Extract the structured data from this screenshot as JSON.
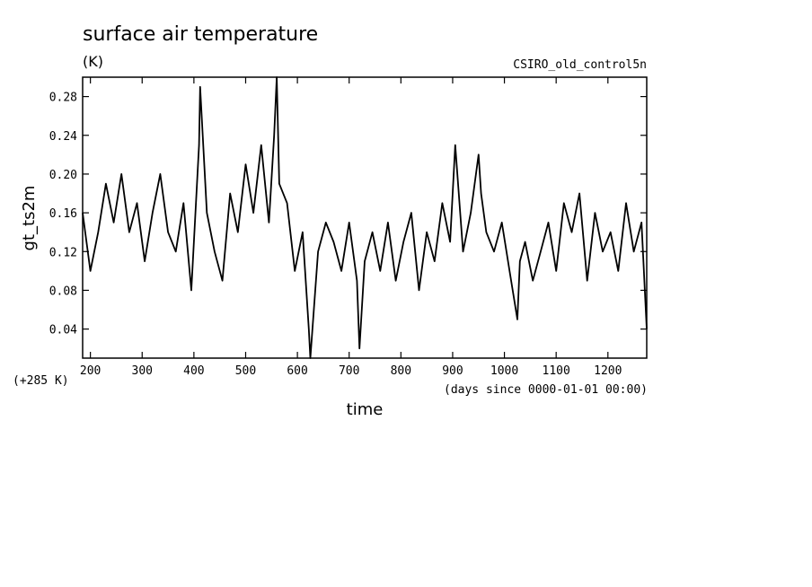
{
  "chart_data": {
    "type": "line",
    "title": "surface air temperature",
    "units": "(K)",
    "experiment": "CSIRO_old_control5n",
    "ylabel": "gt_ts2m",
    "xlabel": "time",
    "y_offset_label": "(+285 K)",
    "x_units_label": "(days since 0000-01-01 00:00)",
    "xlim": [
      185,
      1275
    ],
    "ylim": [
      0.01,
      0.3
    ],
    "x_ticks": [
      200,
      300,
      400,
      500,
      600,
      700,
      800,
      900,
      1000,
      1100,
      1200
    ],
    "x_tick_labels": [
      "200",
      "300",
      "400",
      "500",
      "600",
      "700",
      "800",
      "900",
      "1000",
      "1100",
      "1200"
    ],
    "y_ticks": [
      0.04,
      0.08,
      0.12,
      0.16,
      0.2,
      0.24,
      0.28
    ],
    "y_tick_labels": [
      "0.04",
      "0.08",
      "0.12",
      "0.16",
      "0.20",
      "0.24",
      "0.28"
    ],
    "series": [
      {
        "name": "gt_ts2m",
        "x": [
          185,
          200,
          215,
          230,
          245,
          260,
          275,
          290,
          305,
          320,
          335,
          350,
          365,
          380,
          395,
          410,
          412,
          425,
          440,
          455,
          470,
          485,
          500,
          515,
          530,
          545,
          555,
          560,
          565,
          580,
          595,
          610,
          622,
          625,
          640,
          655,
          670,
          685,
          700,
          715,
          720,
          730,
          745,
          760,
          775,
          790,
          805,
          820,
          835,
          850,
          865,
          880,
          895,
          905,
          920,
          935,
          950,
          955,
          965,
          980,
          995,
          1010,
          1025,
          1030,
          1040,
          1055,
          1070,
          1085,
          1100,
          1115,
          1130,
          1145,
          1160,
          1175,
          1190,
          1205,
          1220,
          1235,
          1250,
          1265,
          1275
        ],
        "y": [
          0.16,
          0.1,
          0.14,
          0.19,
          0.15,
          0.2,
          0.14,
          0.17,
          0.11,
          0.16,
          0.2,
          0.14,
          0.12,
          0.17,
          0.08,
          0.23,
          0.29,
          0.16,
          0.12,
          0.09,
          0.18,
          0.14,
          0.21,
          0.16,
          0.23,
          0.15,
          0.24,
          0.3,
          0.19,
          0.17,
          0.1,
          0.14,
          0.04,
          0.01,
          0.12,
          0.15,
          0.13,
          0.1,
          0.15,
          0.09,
          0.02,
          0.11,
          0.14,
          0.1,
          0.15,
          0.09,
          0.13,
          0.16,
          0.08,
          0.14,
          0.11,
          0.17,
          0.13,
          0.23,
          0.12,
          0.16,
          0.22,
          0.18,
          0.14,
          0.12,
          0.15,
          0.1,
          0.05,
          0.11,
          0.13,
          0.09,
          0.12,
          0.15,
          0.1,
          0.17,
          0.14,
          0.18,
          0.09,
          0.16,
          0.12,
          0.14,
          0.1,
          0.17,
          0.12,
          0.15,
          0.04
        ]
      }
    ]
  }
}
